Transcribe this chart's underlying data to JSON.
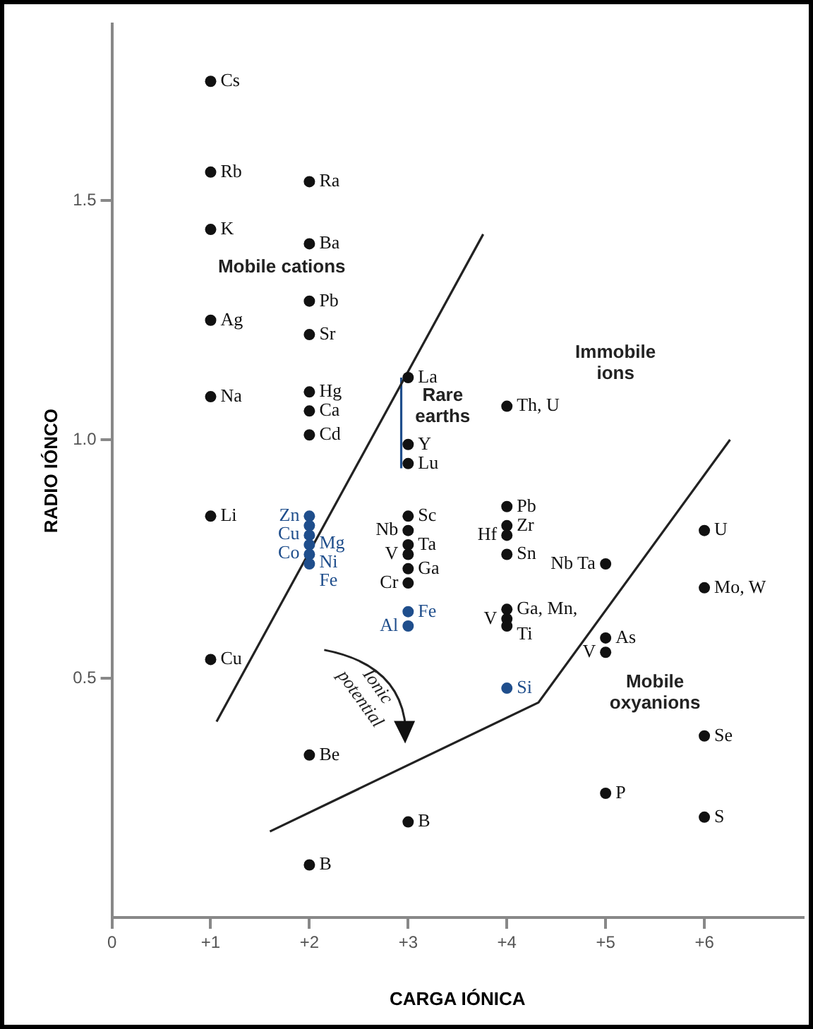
{
  "chart_data": {
    "type": "scatter",
    "xlabel": "CARGA IÓNICA",
    "ylabel": "RADIO IÓNCO",
    "xlim": [
      0,
      7
    ],
    "ylim": [
      0,
      1.87
    ],
    "xticks": [
      0,
      {
        "value": 1,
        "label": "+1"
      },
      {
        "value": 2,
        "label": "+2"
      },
      {
        "value": 3,
        "label": "+3"
      },
      {
        "value": 4,
        "label": "+4"
      },
      {
        "value": 5,
        "label": "+5"
      },
      {
        "value": 6,
        "label": "+6"
      }
    ],
    "yticks": [
      0.5,
      {
        "value": 1,
        "label": "1.0"
      },
      1.5
    ],
    "grid": false,
    "legend": false,
    "marker": "circle",
    "series": [
      {
        "color": "#111111",
        "x": [
          1,
          1,
          1,
          1,
          1,
          1,
          1,
          2,
          2,
          2,
          2,
          2,
          2,
          2,
          2,
          2,
          3,
          3,
          3,
          3,
          3,
          3,
          3,
          3,
          3,
          3,
          4,
          4,
          4,
          4,
          4,
          4,
          4,
          4,
          5,
          5,
          5,
          5,
          6,
          6,
          6,
          6
        ],
        "values": [
          1.75,
          1.56,
          1.44,
          1.25,
          1.09,
          0.84,
          0.54,
          1.54,
          1.41,
          1.29,
          1.22,
          1.1,
          1.06,
          1.01,
          0.34,
          0.11,
          1.13,
          0.99,
          0.95,
          0.84,
          0.81,
          0.78,
          0.76,
          0.73,
          0.7,
          0.2,
          1.07,
          0.86,
          0.82,
          0.8,
          0.76,
          0.645,
          0.625,
          0.61,
          0.74,
          0.585,
          0.555,
          0.26,
          0.81,
          0.69,
          0.38,
          0.21
        ],
        "value_labels": [
          "Cs",
          "Rb",
          "K",
          "Ag",
          "Na",
          "Li",
          "Cu",
          "Ra",
          "Ba",
          "Pb",
          "Sr",
          "Hg",
          "Ca",
          "Cd",
          "Be",
          "B",
          "La",
          "Y",
          "Lu",
          "Sc",
          "Nb",
          "Ta",
          "V",
          "Ga",
          "Cr",
          "B",
          "Th, U",
          "Pb",
          "Zr",
          "Hf",
          "Sn",
          "Ga, Mn,",
          "V",
          "Ti",
          "Nb Ta",
          "As",
          "V",
          "P",
          "U",
          "Mo, W",
          "Se",
          "S"
        ]
      },
      {
        "color": "#1f4e8c",
        "x": [
          2,
          2,
          2,
          2,
          2,
          2,
          3,
          3,
          4
        ],
        "values": [
          0.84,
          0.82,
          0.8,
          0.78,
          0.76,
          0.74,
          0.64,
          0.61,
          0.48
        ],
        "value_labels": [
          "Zn",
          "Cu",
          "Mg",
          "Co",
          "Ni",
          "Fe",
          "Fe",
          "Al",
          "Si"
        ]
      },
      {
        "type": "line",
        "color": "#222222",
        "marker": "none",
        "x": [
          1.06,
          3.76
        ],
        "values": [
          0.41,
          1.43
        ]
      },
      {
        "type": "line",
        "color": "#222222",
        "marker": "none",
        "x": [
          1.6,
          4.32,
          6.26
        ],
        "values": [
          0.18,
          0.45,
          1.0
        ]
      },
      {
        "type": "line",
        "color": "#1f4e8c",
        "marker": "none",
        "x": [
          2.93,
          2.93
        ],
        "values": [
          0.94,
          1.13
        ]
      }
    ],
    "annotations": [
      "Mobile cations",
      "Immobile\nions",
      "Rare\nearths",
      "Mobile\noxyanions",
      "Ionic\npotential"
    ]
  }
}
